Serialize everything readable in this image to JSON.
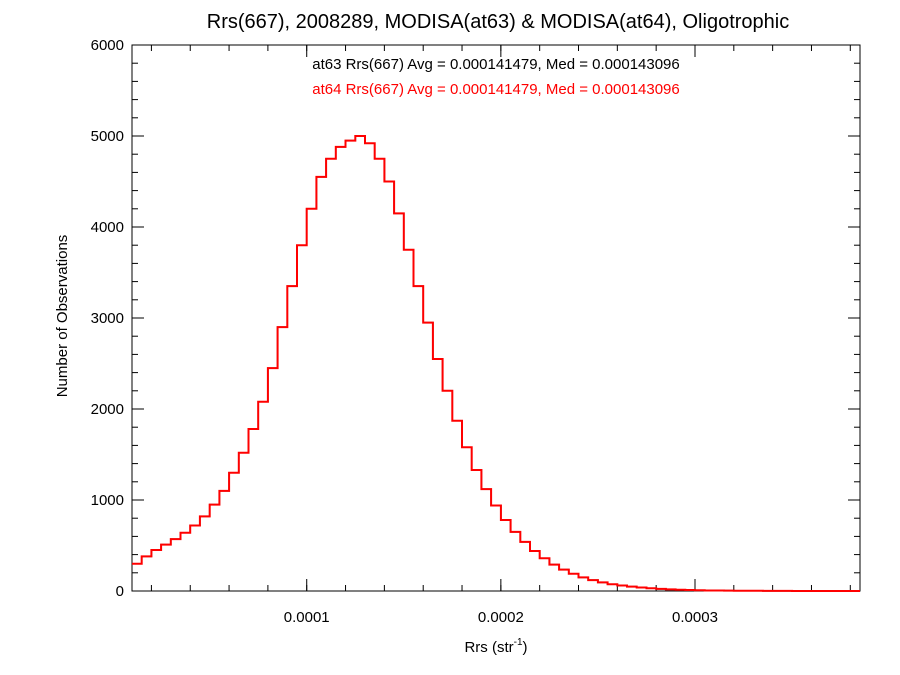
{
  "chart_data": {
    "type": "line",
    "title": "Rrs(667), 2008289, MODISA(at63) & MODISA(at64), Oligotrophic",
    "xlabel_main": "Rrs (str",
    "xlabel_sup": "-1",
    "xlabel_close": ")",
    "ylabel": "Number of Observations",
    "xlim": [
      1e-05,
      0.000385
    ],
    "ylim": [
      0,
      6000
    ],
    "x_ticks": [
      0.0001,
      0.0002,
      0.0003
    ],
    "x_tick_labels": [
      "0.0001",
      "0.0002",
      "0.0003"
    ],
    "y_ticks": [
      0,
      1000,
      2000,
      3000,
      4000,
      5000,
      6000
    ],
    "y_tick_labels": [
      "0",
      "1000",
      "2000",
      "3000",
      "4000",
      "5000",
      "6000"
    ],
    "grid": false,
    "annotations": [
      {
        "text": "at63 Rrs(667) Avg = 0.000141479, Med = 0.000143096",
        "color": "#000000"
      },
      {
        "text": "at64 Rrs(667) Avg = 0.000141479, Med = 0.000143096",
        "color": "#ff0000"
      }
    ],
    "series": [
      {
        "color": "#000000",
        "style": "step",
        "x": [
          1e-05,
          1.5e-05,
          2e-05,
          2.5e-05,
          3e-05,
          3.5e-05,
          4e-05,
          4.5e-05,
          5e-05,
          5.5e-05,
          6e-05,
          6.5e-05,
          7e-05,
          7.5e-05,
          8e-05,
          8.5e-05,
          9e-05,
          9.5e-05,
          0.0001,
          0.000105,
          0.00011,
          0.000115,
          0.00012,
          0.000125,
          0.00013,
          0.000135,
          0.00014,
          0.000145,
          0.00015,
          0.000155,
          0.00016,
          0.000165,
          0.00017,
          0.000175,
          0.00018,
          0.000185,
          0.00019,
          0.000195,
          0.0002,
          0.000205,
          0.00021,
          0.000215,
          0.00022,
          0.000225,
          0.00023,
          0.000235,
          0.00024,
          0.000245,
          0.00025,
          0.000255,
          0.00026,
          0.000265,
          0.00027,
          0.000275,
          0.00028,
          0.000285,
          0.00029,
          0.000295,
          0.0003,
          0.000305,
          0.00031,
          0.000315,
          0.00032,
          0.000325,
          0.00033,
          0.000335,
          0.00034,
          0.000345,
          0.00035,
          0.000355,
          0.00036,
          0.000365,
          0.00037,
          0.000375,
          0.00038
        ],
        "y": [
          300,
          380,
          450,
          510,
          570,
          640,
          720,
          820,
          950,
          1100,
          1300,
          1520,
          1780,
          2080,
          2450,
          2900,
          3350,
          3800,
          4200,
          4550,
          4750,
          4880,
          4950,
          5000,
          4920,
          4750,
          4500,
          4150,
          3750,
          3350,
          2950,
          2550,
          2200,
          1870,
          1580,
          1330,
          1120,
          940,
          780,
          650,
          540,
          440,
          360,
          290,
          235,
          190,
          150,
          120,
          95,
          75,
          60,
          48,
          38,
          30,
          23,
          18,
          14,
          11,
          8,
          6,
          5,
          4,
          3,
          2,
          2,
          1,
          1,
          1,
          0,
          0,
          0,
          0,
          0,
          0,
          0
        ]
      },
      {
        "color": "#ff0000",
        "style": "step",
        "x": [
          1e-05,
          1.5e-05,
          2e-05,
          2.5e-05,
          3e-05,
          3.5e-05,
          4e-05,
          4.5e-05,
          5e-05,
          5.5e-05,
          6e-05,
          6.5e-05,
          7e-05,
          7.5e-05,
          8e-05,
          8.5e-05,
          9e-05,
          9.5e-05,
          0.0001,
          0.000105,
          0.00011,
          0.000115,
          0.00012,
          0.000125,
          0.00013,
          0.000135,
          0.00014,
          0.000145,
          0.00015,
          0.000155,
          0.00016,
          0.000165,
          0.00017,
          0.000175,
          0.00018,
          0.000185,
          0.00019,
          0.000195,
          0.0002,
          0.000205,
          0.00021,
          0.000215,
          0.00022,
          0.000225,
          0.00023,
          0.000235,
          0.00024,
          0.000245,
          0.00025,
          0.000255,
          0.00026,
          0.000265,
          0.00027,
          0.000275,
          0.00028,
          0.000285,
          0.00029,
          0.000295,
          0.0003,
          0.000305,
          0.00031,
          0.000315,
          0.00032,
          0.000325,
          0.00033,
          0.000335,
          0.00034,
          0.000345,
          0.00035,
          0.000355,
          0.00036,
          0.000365,
          0.00037,
          0.000375,
          0.00038
        ],
        "y": [
          300,
          380,
          450,
          510,
          570,
          640,
          720,
          820,
          950,
          1100,
          1300,
          1520,
          1780,
          2080,
          2450,
          2900,
          3350,
          3800,
          4200,
          4550,
          4750,
          4880,
          4950,
          5000,
          4920,
          4750,
          4500,
          4150,
          3750,
          3350,
          2950,
          2550,
          2200,
          1870,
          1580,
          1330,
          1120,
          940,
          780,
          650,
          540,
          440,
          360,
          290,
          235,
          190,
          150,
          120,
          95,
          75,
          60,
          48,
          38,
          30,
          23,
          18,
          14,
          11,
          8,
          6,
          5,
          4,
          3,
          2,
          2,
          1,
          1,
          1,
          0,
          0,
          0,
          0,
          0,
          0,
          0
        ]
      }
    ]
  }
}
